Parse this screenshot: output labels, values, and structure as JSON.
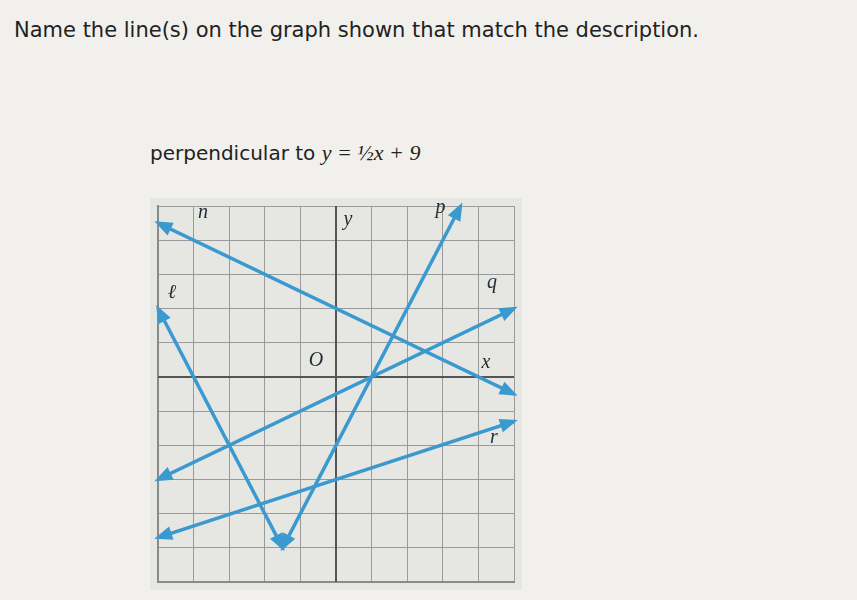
{
  "question": "Name the line(s) on the graph shown that match the description.",
  "description": "perpendicular to",
  "equation": "y = ½x + 9",
  "chart_data": {
    "type": "line",
    "x_label": "x",
    "y_label": "y",
    "origin_label": "O",
    "xlim": [
      -5,
      5
    ],
    "ylim": [
      -6,
      5
    ],
    "xticks": [
      -5,
      -4,
      -3,
      -2,
      -1,
      0,
      1,
      2,
      3,
      4,
      5
    ],
    "yticks": [
      -6,
      -5,
      -4,
      -3,
      -2,
      -1,
      0,
      1,
      2,
      3,
      4,
      5
    ],
    "grid": true,
    "tick_labels": false,
    "series": [
      {
        "name": "n",
        "color": "#3a9ad0",
        "x": [
          -5,
          5
        ],
        "values": [
          4.5,
          -0.5
        ]
      },
      {
        "name": "ℓ",
        "color": "#3a9ad0",
        "x": [
          -5,
          -1.5
        ],
        "values": [
          2,
          -5
        ]
      },
      {
        "name": "p",
        "color": "#3a9ad0",
        "x": [
          -1.5,
          3.5
        ],
        "values": [
          -5,
          5
        ]
      },
      {
        "name": "q",
        "color": "#3a9ad0",
        "x": [
          -5,
          5
        ],
        "values": [
          -3,
          2
        ]
      },
      {
        "name": "r",
        "color": "#3a9ad0",
        "x": [
          -5,
          5
        ],
        "values": [
          -4.7,
          -1.3
        ]
      }
    ]
  }
}
